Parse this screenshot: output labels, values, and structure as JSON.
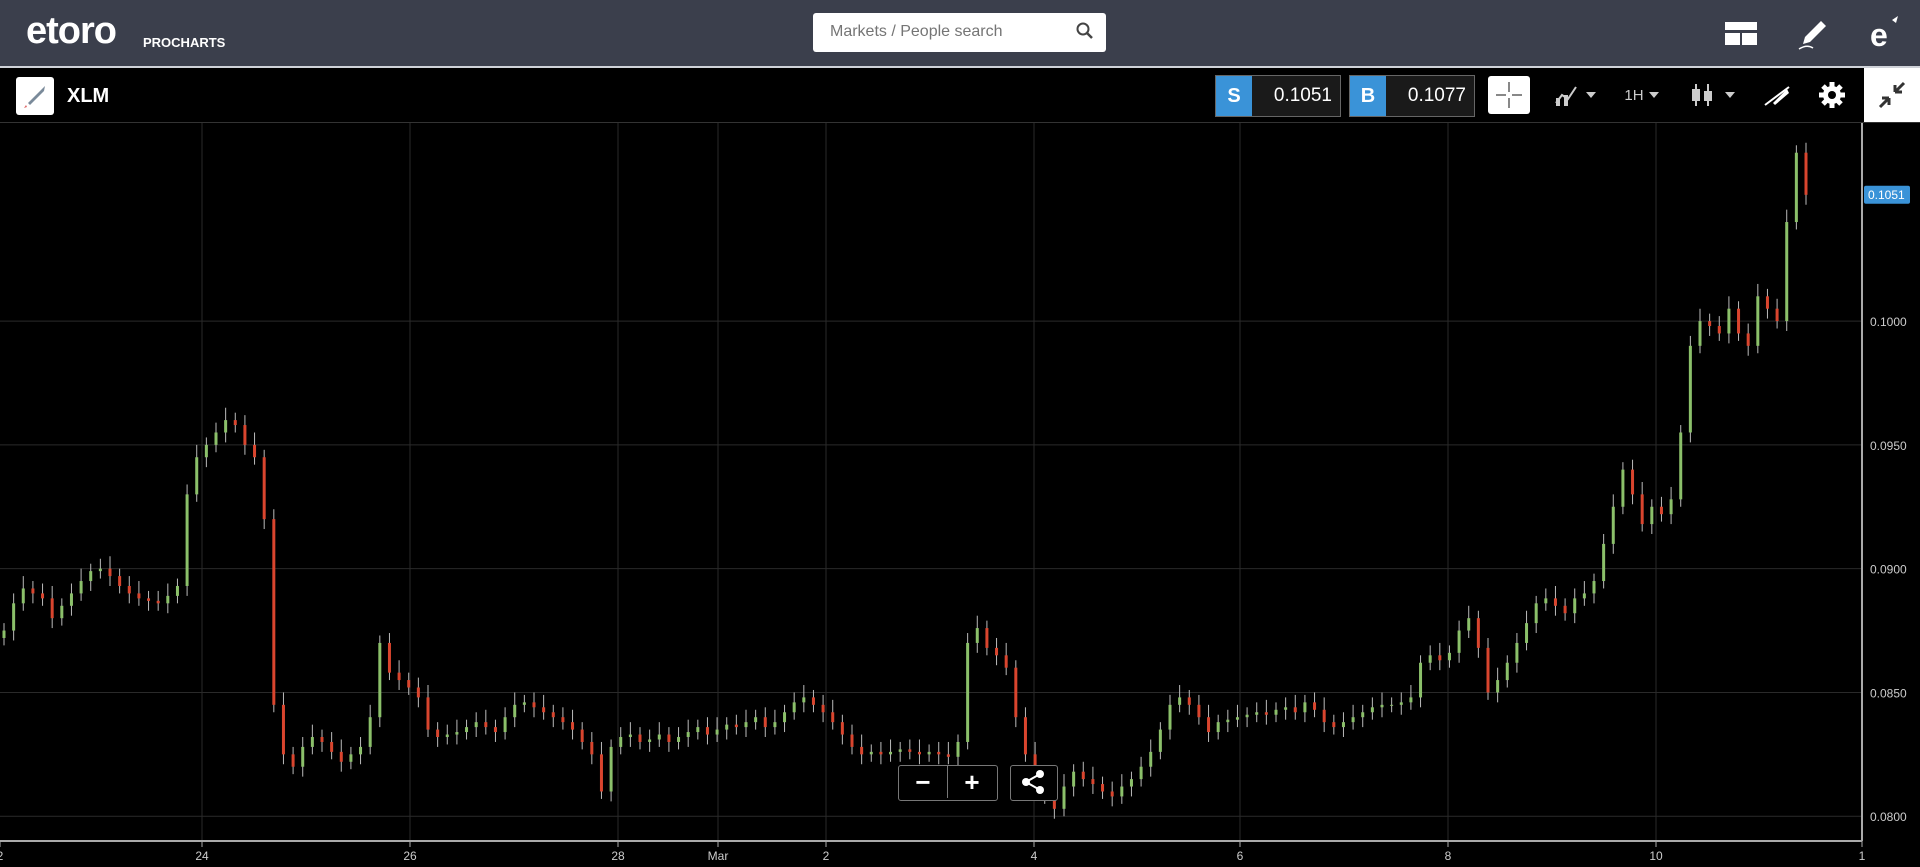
{
  "header": {
    "logo_text": "etoro",
    "logo_sub": "PROCHARTS",
    "search_placeholder": "Markets / People search"
  },
  "toolbar": {
    "asset": "XLM",
    "sell_label": "S",
    "sell_price": "0.1051",
    "buy_label": "B",
    "buy_price": "0.1077",
    "timeframe": "1H"
  },
  "chart_data": {
    "type": "candlestick",
    "current_price": "0.1051",
    "y_ticks": [
      "0.1000",
      "0.0950",
      "0.0900",
      "0.0850",
      "0.0800"
    ],
    "x_ticks": [
      "2",
      "24",
      "26",
      "28",
      "Mar",
      "2",
      "4",
      "6",
      "8",
      "10",
      "1"
    ],
    "ylim": [
      0.079,
      0.108
    ],
    "close_trend": [
      0.0875,
      0.0886,
      0.0892,
      0.089,
      0.0888,
      0.088,
      0.0885,
      0.089,
      0.0895,
      0.0899,
      0.09,
      0.0897,
      0.0893,
      0.089,
      0.0888,
      0.0887,
      0.0886,
      0.0889,
      0.0893,
      0.093,
      0.0945,
      0.095,
      0.0955,
      0.096,
      0.0958,
      0.095,
      0.0945,
      0.092,
      0.0845,
      0.0825,
      0.082,
      0.0828,
      0.0832,
      0.083,
      0.0826,
      0.0822,
      0.0825,
      0.0828,
      0.084,
      0.087,
      0.0858,
      0.0855,
      0.0852,
      0.0848,
      0.0835,
      0.0832,
      0.0833,
      0.0834,
      0.0836,
      0.0838,
      0.0836,
      0.0834,
      0.084,
      0.0845,
      0.0846,
      0.0844,
      0.0842,
      0.084,
      0.0838,
      0.0835,
      0.083,
      0.0825,
      0.081,
      0.0828,
      0.0832,
      0.0833,
      0.083,
      0.0831,
      0.0833,
      0.083,
      0.0832,
      0.0834,
      0.0836,
      0.0833,
      0.0835,
      0.0837,
      0.0836,
      0.0838,
      0.084,
      0.0836,
      0.0838,
      0.0842,
      0.0846,
      0.0848,
      0.0845,
      0.0842,
      0.0838,
      0.0833,
      0.0828,
      0.0825,
      0.0826,
      0.0825,
      0.0826,
      0.0827,
      0.0826,
      0.0825,
      0.0826,
      0.0825,
      0.0824,
      0.083,
      0.087,
      0.0876,
      0.0868,
      0.0865,
      0.086,
      0.084,
      0.0825,
      0.0815,
      0.0808,
      0.0803,
      0.0812,
      0.0818,
      0.0815,
      0.0813,
      0.081,
      0.0808,
      0.0812,
      0.0815,
      0.082,
      0.0826,
      0.0835,
      0.0845,
      0.0848,
      0.0845,
      0.084,
      0.0834,
      0.0838,
      0.0839,
      0.084,
      0.0841,
      0.0842,
      0.0841,
      0.0843,
      0.0844,
      0.0842,
      0.0846,
      0.0843,
      0.0838,
      0.0836,
      0.0838,
      0.084,
      0.0842,
      0.0844,
      0.0845,
      0.0845,
      0.0846,
      0.0848,
      0.0862,
      0.0865,
      0.0863,
      0.0866,
      0.0875,
      0.088,
      0.0868,
      0.085,
      0.0855,
      0.0862,
      0.087,
      0.0878,
      0.0886,
      0.0888,
      0.0885,
      0.0882,
      0.0888,
      0.089,
      0.0895,
      0.091,
      0.0925,
      0.094,
      0.093,
      0.0918,
      0.0925,
      0.0922,
      0.0928,
      0.0955,
      0.099,
      0.1,
      0.0998,
      0.0995,
      0.1005,
      0.0995,
      0.099,
      0.101,
      0.1005,
      0.1,
      0.104,
      0.1068,
      0.1051
    ]
  }
}
